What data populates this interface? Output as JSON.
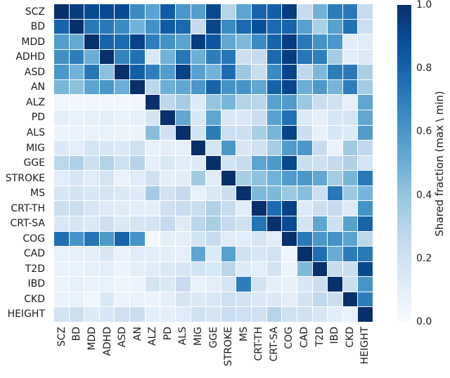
{
  "chart_data": {
    "type": "heatmap",
    "colormap": "Blues",
    "vmin": 0.0,
    "vmax": 1.0,
    "colorbar_label": "Shared fraction (max \\ min)",
    "colorbar_ticks": [
      "1.0",
      "0.8",
      "0.6",
      "0.4",
      "0.2",
      "0.0"
    ],
    "grid_line_color": "#ffffff",
    "legend_position": "right",
    "labels": [
      "SCZ",
      "BD",
      "MDD",
      "ADHD",
      "ASD",
      "AN",
      "ALZ",
      "PD",
      "ALS",
      "MIG",
      "GGE",
      "STROKE",
      "MS",
      "CRT-TH",
      "CRT-SA",
      "COG",
      "CAD",
      "T2D",
      "IBD",
      "CKD",
      "HEIGHT"
    ],
    "matrix": [
      [
        1.0,
        0.95,
        0.9,
        0.9,
        0.9,
        0.65,
        0.55,
        0.83,
        0.6,
        0.57,
        0.9,
        0.3,
        0.55,
        0.8,
        0.82,
        0.95,
        0.25,
        0.48,
        0.71,
        0.72,
        0.25
      ],
      [
        0.8,
        1.0,
        0.72,
        0.72,
        0.65,
        0.48,
        0.63,
        0.83,
        0.78,
        0.25,
        0.92,
        0.65,
        0.78,
        0.88,
        0.78,
        0.8,
        0.56,
        0.34,
        0.56,
        0.75,
        0.22
      ],
      [
        0.57,
        0.52,
        1.0,
        0.8,
        0.78,
        0.93,
        0.7,
        0.62,
        0.55,
        0.95,
        0.85,
        0.53,
        0.45,
        0.65,
        0.8,
        0.95,
        0.72,
        0.62,
        0.6,
        0.11,
        0.12
      ],
      [
        0.63,
        0.7,
        0.5,
        1.0,
        0.68,
        0.75,
        0.15,
        0.48,
        0.73,
        0.5,
        0.7,
        0.73,
        0.22,
        0.25,
        0.78,
        0.95,
        0.73,
        0.7,
        0.35,
        0.11,
        0.13
      ],
      [
        0.6,
        0.48,
        0.73,
        0.42,
        1.0,
        0.82,
        0.7,
        0.58,
        0.93,
        0.56,
        0.48,
        0.77,
        0.38,
        0.23,
        0.65,
        0.92,
        0.27,
        0.45,
        0.71,
        0.72,
        0.34
      ],
      [
        0.47,
        0.42,
        0.55,
        0.6,
        0.5,
        1.0,
        0.28,
        0.5,
        0.53,
        0.6,
        0.8,
        0.62,
        0.61,
        0.53,
        0.81,
        0.92,
        0.5,
        0.59,
        0.47,
        0.7,
        0.36
      ],
      [
        0.03,
        0.03,
        0.03,
        0.03,
        0.03,
        0.03,
        1.0,
        0.27,
        0.35,
        0.13,
        0.4,
        0.47,
        0.31,
        0.29,
        0.56,
        0.58,
        0.38,
        0.23,
        0.2,
        0.09,
        0.54
      ],
      [
        0.1,
        0.08,
        0.09,
        0.1,
        0.08,
        0.09,
        0.17,
        1.0,
        0.53,
        0.15,
        0.54,
        0.15,
        0.14,
        0.23,
        0.56,
        0.75,
        0.13,
        0.1,
        0.16,
        0.17,
        0.53
      ],
      [
        0.06,
        0.07,
        0.07,
        0.08,
        0.06,
        0.06,
        0.43,
        0.2,
        1.0,
        0.18,
        0.71,
        0.22,
        0.22,
        0.34,
        0.47,
        0.92,
        0.22,
        0.08,
        0.16,
        0.13,
        0.58
      ],
      [
        0.14,
        0.11,
        0.18,
        0.16,
        0.14,
        0.2,
        0.08,
        0.1,
        0.09,
        1.0,
        0.18,
        0.6,
        0.16,
        0.2,
        0.35,
        0.58,
        0.6,
        0.24,
        0.07,
        0.37,
        0.27
      ],
      [
        0.28,
        0.32,
        0.22,
        0.31,
        0.2,
        0.3,
        0.09,
        0.15,
        0.12,
        0.12,
        1.0,
        0.19,
        0.24,
        0.55,
        0.59,
        0.91,
        0.23,
        0.21,
        0.25,
        0.32,
        0.18
      ],
      [
        0.11,
        0.16,
        0.12,
        0.18,
        0.07,
        0.12,
        0.2,
        0.1,
        0.11,
        0.37,
        0.12,
        1.0,
        0.34,
        0.41,
        0.48,
        0.58,
        0.6,
        0.53,
        0.35,
        0.47,
        0.72
      ],
      [
        0.15,
        0.18,
        0.15,
        0.17,
        0.14,
        0.12,
        0.35,
        0.19,
        0.25,
        0.08,
        0.15,
        0.22,
        1.0,
        0.45,
        0.45,
        0.38,
        0.43,
        0.22,
        0.72,
        0.38,
        0.47
      ],
      [
        0.22,
        0.23,
        0.16,
        0.13,
        0.12,
        0.11,
        0.1,
        0.21,
        0.24,
        0.23,
        0.32,
        0.24,
        0.11,
        1.0,
        0.77,
        0.93,
        0.13,
        0.22,
        0.25,
        0.13,
        0.62
      ],
      [
        0.15,
        0.17,
        0.14,
        0.21,
        0.14,
        0.17,
        0.18,
        0.25,
        0.12,
        0.29,
        0.34,
        0.25,
        0.2,
        0.74,
        1.0,
        0.9,
        0.18,
        0.54,
        0.21,
        0.56,
        0.8
      ],
      [
        0.76,
        0.61,
        0.74,
        0.59,
        0.8,
        0.61,
        0.02,
        0.1,
        0.1,
        0.18,
        0.24,
        0.12,
        0.11,
        0.17,
        0.11,
        1.0,
        0.72,
        0.6,
        0.62,
        0.55,
        0.28
      ],
      [
        0.08,
        0.09,
        0.1,
        0.16,
        0.07,
        0.12,
        0.11,
        0.1,
        0.09,
        0.54,
        0.13,
        0.56,
        0.2,
        0.16,
        0.19,
        0.05,
        1.0,
        0.76,
        0.51,
        0.71,
        0.72
      ],
      [
        0.07,
        0.08,
        0.09,
        0.11,
        0.06,
        0.1,
        0.12,
        0.15,
        0.16,
        0.18,
        0.15,
        0.29,
        0.13,
        0.11,
        0.19,
        0.06,
        0.45,
        1.0,
        0.24,
        0.22,
        0.91
      ],
      [
        0.06,
        0.09,
        0.07,
        0.08,
        0.05,
        0.06,
        0.18,
        0.15,
        0.24,
        0.08,
        0.1,
        0.17,
        0.7,
        0.19,
        0.1,
        0.08,
        0.16,
        0.22,
        1.0,
        0.22,
        0.61
      ],
      [
        0.07,
        0.08,
        0.04,
        0.15,
        0.06,
        0.07,
        0.06,
        0.09,
        0.17,
        0.14,
        0.15,
        0.21,
        0.19,
        0.14,
        0.14,
        0.1,
        0.19,
        0.27,
        0.23,
        1.0,
        0.7
      ],
      [
        0.19,
        0.22,
        0.13,
        0.16,
        0.21,
        0.23,
        0.11,
        0.1,
        0.12,
        0.2,
        0.17,
        0.23,
        0.21,
        0.2,
        0.3,
        0.2,
        0.2,
        0.16,
        0.11,
        0.08,
        1.0
      ]
    ],
    "colormap_stops": [
      [
        0.0,
        [
          247,
          251,
          255
        ]
      ],
      [
        0.125,
        [
          222,
          235,
          247
        ]
      ],
      [
        0.25,
        [
          198,
          219,
          239
        ]
      ],
      [
        0.375,
        [
          158,
          202,
          225
        ]
      ],
      [
        0.5,
        [
          107,
          174,
          214
        ]
      ],
      [
        0.625,
        [
          66,
          146,
          198
        ]
      ],
      [
        0.75,
        [
          33,
          113,
          181
        ]
      ],
      [
        0.875,
        [
          8,
          81,
          156
        ]
      ],
      [
        1.0,
        [
          8,
          48,
          107
        ]
      ]
    ]
  }
}
